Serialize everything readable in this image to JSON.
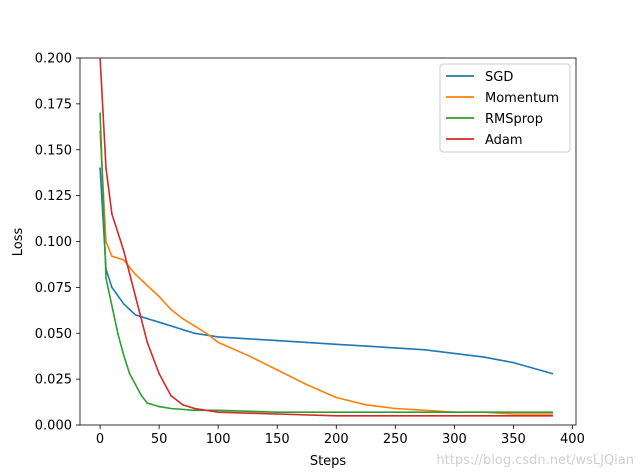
{
  "chart_data": {
    "type": "line",
    "title": "",
    "xlabel": "Steps",
    "ylabel": "Loss",
    "xlim": [
      -17,
      403
    ],
    "ylim": [
      0,
      0.2
    ],
    "xticks": [
      0,
      50,
      100,
      150,
      200,
      250,
      300,
      350,
      400
    ],
    "xtick_labels": [
      "0",
      "50",
      "100",
      "150",
      "200",
      "250",
      "300",
      "350",
      "400"
    ],
    "yticks": [
      0,
      0.025,
      0.05,
      0.075,
      0.1,
      0.125,
      0.15,
      0.175,
      0.2
    ],
    "ytick_labels": [
      "0.000",
      "0.025",
      "0.050",
      "0.075",
      "0.100",
      "0.125",
      "0.150",
      "0.175",
      "0.200"
    ],
    "grid": false,
    "legend_position": "top-right",
    "series": [
      {
        "name": "SGD",
        "color": "#1f77b4",
        "x": [
          0,
          5,
          10,
          20,
          30,
          40,
          50,
          60,
          70,
          80,
          90,
          100,
          125,
          150,
          175,
          200,
          225,
          250,
          275,
          300,
          325,
          350,
          383
        ],
        "values": [
          0.14,
          0.085,
          0.075,
          0.066,
          0.06,
          0.058,
          0.056,
          0.054,
          0.052,
          0.05,
          0.049,
          0.048,
          0.047,
          0.046,
          0.045,
          0.044,
          0.043,
          0.042,
          0.041,
          0.039,
          0.037,
          0.034,
          0.028
        ]
      },
      {
        "name": "Momentum",
        "color": "#ff7f0e",
        "x": [
          0,
          5,
          10,
          20,
          30,
          40,
          50,
          60,
          70,
          80,
          90,
          100,
          125,
          150,
          175,
          200,
          225,
          250,
          275,
          300,
          325,
          350,
          383
        ],
        "values": [
          0.16,
          0.1,
          0.092,
          0.09,
          0.082,
          0.076,
          0.07,
          0.063,
          0.058,
          0.054,
          0.05,
          0.045,
          0.038,
          0.03,
          0.022,
          0.015,
          0.011,
          0.009,
          0.008,
          0.007,
          0.007,
          0.006,
          0.006
        ]
      },
      {
        "name": "RMSprop",
        "color": "#2ca02c",
        "x": [
          0,
          5,
          10,
          15,
          20,
          25,
          30,
          35,
          40,
          50,
          60,
          80,
          100,
          150,
          200,
          250,
          300,
          350,
          383
        ],
        "values": [
          0.17,
          0.08,
          0.065,
          0.05,
          0.038,
          0.028,
          0.022,
          0.016,
          0.012,
          0.01,
          0.009,
          0.008,
          0.008,
          0.007,
          0.007,
          0.007,
          0.007,
          0.007,
          0.007
        ]
      },
      {
        "name": "Adam",
        "color": "#d62728",
        "x": [
          0,
          5,
          10,
          15,
          20,
          30,
          40,
          50,
          60,
          70,
          80,
          100,
          150,
          200,
          250,
          300,
          350,
          383
        ],
        "values": [
          0.2,
          0.14,
          0.115,
          0.105,
          0.095,
          0.07,
          0.045,
          0.028,
          0.016,
          0.011,
          0.009,
          0.007,
          0.006,
          0.005,
          0.005,
          0.005,
          0.005,
          0.005
        ]
      }
    ]
  },
  "watermark": "https://blog.csdn.net/wsLJQian"
}
